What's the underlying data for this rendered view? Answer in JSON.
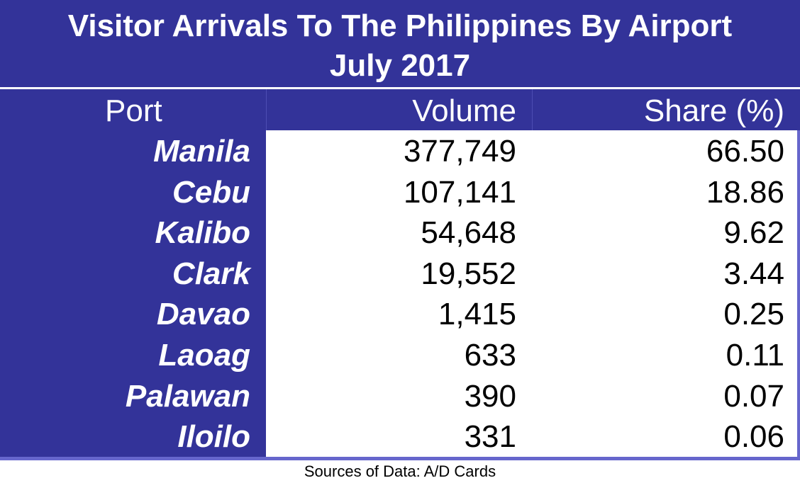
{
  "header": {
    "title": "Visitor Arrivals To The Philippines By Airport",
    "subtitle": "July 2017"
  },
  "table": {
    "columns": [
      "Port",
      "Volume",
      "Share (%)"
    ],
    "rows": [
      [
        "Manila",
        "377,749",
        "66.50"
      ],
      [
        "Cebu",
        "107,141",
        "18.86"
      ],
      [
        "Kalibo",
        "54,648",
        "9.62"
      ],
      [
        "Clark",
        "19,552",
        "3.44"
      ],
      [
        "Davao",
        "1,415",
        "0.25"
      ],
      [
        "Laoag",
        "633",
        "0.11"
      ],
      [
        "Palawan",
        "390",
        "0.07"
      ],
      [
        "Iloilo",
        "331",
        "0.06"
      ]
    ]
  },
  "footer": {
    "source": "Sources of Data: A/D Cards"
  }
}
